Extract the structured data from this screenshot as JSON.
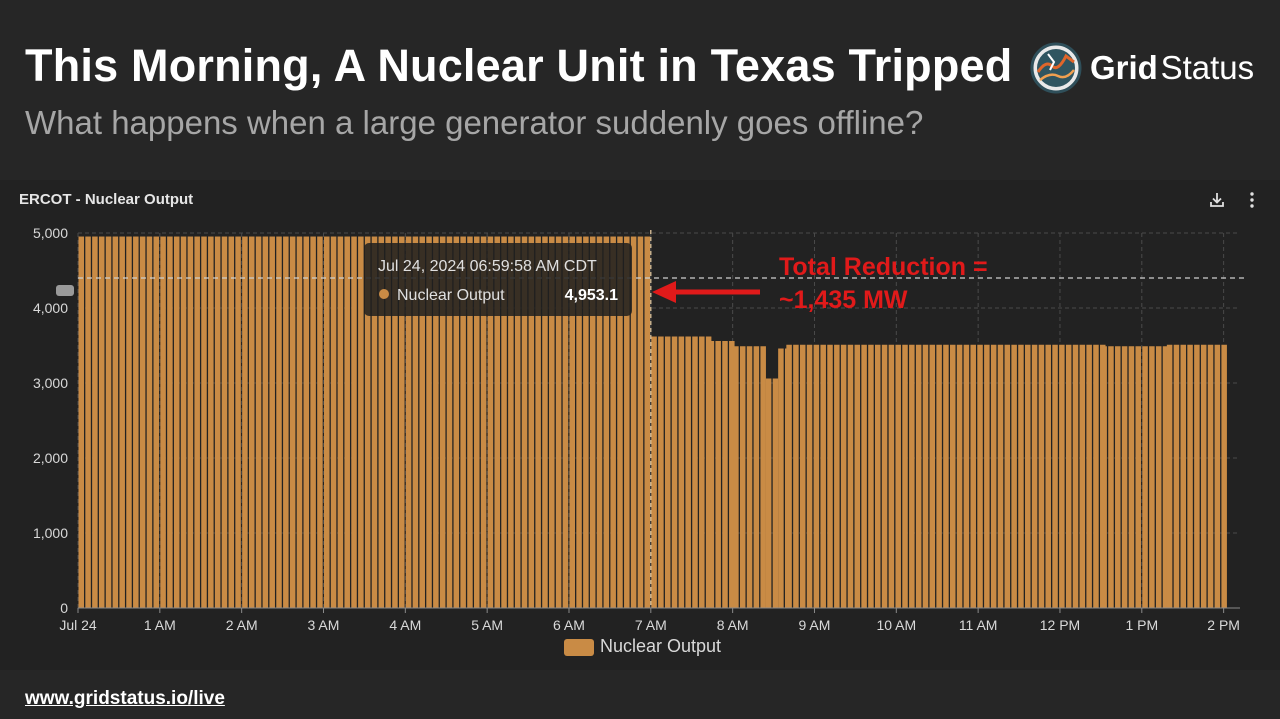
{
  "slide": {
    "headline": "This Morning, A Nuclear Unit in Texas Tripped",
    "subtitle": "What happens when a large generator suddenly goes offline?",
    "footer_link": "www.gridstatus.io/live"
  },
  "brand": {
    "name_bold": "Grid",
    "name_regular": "Status",
    "logo_icon": "grid-status-logo-icon"
  },
  "toolbar": {
    "download_icon": "download-icon",
    "menu_icon": "more-vertical-icon"
  },
  "colors": {
    "bar": "#c98b45",
    "bar_edge": "#8a5a28",
    "annotation": "#e01a1a",
    "grid": "#4a4a4a"
  },
  "chart_data": {
    "type": "bar",
    "title": "ERCOT - Nuclear Output",
    "series_name": "Nuclear Output",
    "xlabel": "",
    "ylabel": "",
    "ylim": [
      0,
      5000
    ],
    "yticks": [
      0,
      1000,
      2000,
      3000,
      4000,
      5000
    ],
    "ytick_labels": [
      "0",
      "1,000",
      "2,000",
      "3,000",
      "4,000",
      "5,000"
    ],
    "x_range_hours": [
      0,
      14.2
    ],
    "bar_interval_minutes": 5,
    "xticks_hours": [
      0,
      1,
      2,
      3,
      4,
      5,
      6,
      7,
      8,
      9,
      10,
      11,
      12,
      13,
      14
    ],
    "xtick_labels": [
      "Jul 24",
      "1 AM",
      "2 AM",
      "3 AM",
      "4 AM",
      "5 AM",
      "6 AM",
      "7 AM",
      "8 AM",
      "9 AM",
      "10 AM",
      "11 AM",
      "12 PM",
      "1 PM",
      "2 PM"
    ],
    "segments": [
      {
        "start_hour": 0.0,
        "end_hour": 7.0,
        "value": 4953.1
      },
      {
        "start_hour": 7.0,
        "end_hour": 7.7,
        "value": 3620
      },
      {
        "start_hour": 7.7,
        "end_hour": 8.0,
        "value": 3560
      },
      {
        "start_hour": 8.0,
        "end_hour": 8.4,
        "value": 3490
      },
      {
        "start_hour": 8.4,
        "end_hour": 8.55,
        "value": 3060
      },
      {
        "start_hour": 8.55,
        "end_hour": 8.65,
        "value": 3460
      },
      {
        "start_hour": 8.65,
        "end_hour": 12.5,
        "value": 3510
      },
      {
        "start_hour": 12.5,
        "end_hour": 13.3,
        "value": 3490
      },
      {
        "start_hour": 13.3,
        "end_hour": 14.05,
        "value": 3510
      }
    ],
    "reference_line": {
      "value": 4400,
      "style": "dashed"
    },
    "hover_marker_hour": 7.0,
    "tooltip": {
      "time": "Jul 24, 2024 06:59:58 AM CDT",
      "series": "Nuclear Output",
      "value": "4,953.1"
    },
    "annotation": {
      "line1": "Total Reduction =",
      "line2": "~1,435 MW"
    },
    "legend": {
      "label": "Nuclear Output",
      "position": "bottom-center"
    }
  }
}
